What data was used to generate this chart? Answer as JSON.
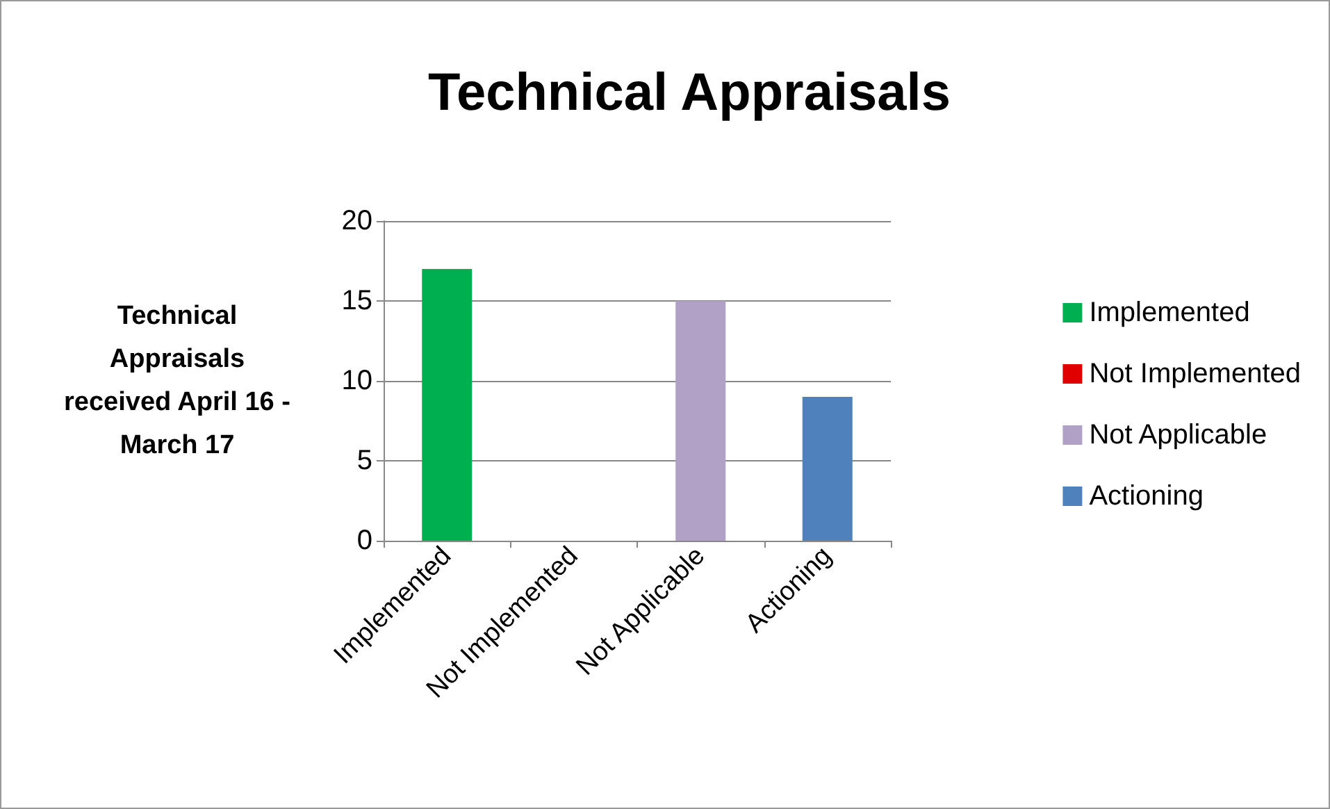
{
  "chart_data": {
    "type": "bar",
    "title": "Technical Appraisals",
    "ylabel": "Technical Appraisals received April 16 - March 17",
    "categories": [
      "Implemented",
      "Not Implemented",
      "Not Applicable",
      "Actioning"
    ],
    "series": [
      {
        "name": "Implemented",
        "color": "#00b050",
        "values": [
          17,
          null,
          null,
          null
        ]
      },
      {
        "name": "Not Implemented",
        "color": "#e00000",
        "values": [
          null,
          0,
          null,
          null
        ]
      },
      {
        "name": "Not Applicable",
        "color": "#b2a1c7",
        "values": [
          null,
          null,
          15,
          null
        ]
      },
      {
        "name": "Actioning",
        "color": "#4f81bd",
        "values": [
          null,
          null,
          null,
          9
        ]
      }
    ],
    "ylim": [
      0,
      20
    ],
    "yticks": [
      0,
      5,
      10,
      15,
      20
    ],
    "grid": "y",
    "legend": "right"
  }
}
